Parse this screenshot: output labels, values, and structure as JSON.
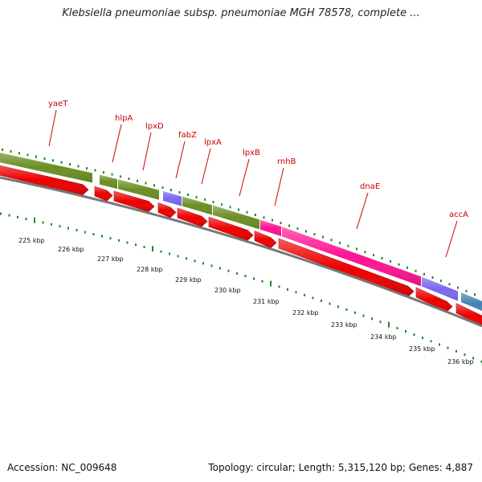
{
  "title": "Klebsiella pneumoniae subsp. pneumoniae MGH 78578, complete ...",
  "footer": {
    "accession": "Accession: NC_009648",
    "stats": "Topology: circular; Length: 5,315,120 bp; Genes: 4,887"
  },
  "colors": {
    "cds": "#ee0000",
    "backbone": "#777777",
    "tick": "#228822",
    "label": "#cc0000"
  },
  "gene_labels": [
    "yaeT",
    "hlpA",
    "lpxD",
    "fabZ",
    "lpxA",
    "lpxB",
    "rnhB",
    "dnaE",
    "accA"
  ],
  "kbp_labels": [
    "225 kbp",
    "226 kbp",
    "227 kbp",
    "228 kbp",
    "229 kbp",
    "230 kbp",
    "231 kbp",
    "232 kbp",
    "233 kbp",
    "234 kbp",
    "235 kbp",
    "236 kbp"
  ],
  "feature_track": [
    {
      "type": "gene",
      "color": "#6b8e23"
    },
    {
      "type": "gene",
      "color": "#6b8e23"
    },
    {
      "type": "gene",
      "color": "#6b8e23"
    },
    {
      "type": "misc",
      "color": "#7b68ee"
    },
    {
      "type": "gene",
      "color": "#6b8e23"
    },
    {
      "type": "gene",
      "color": "#6b8e23"
    },
    {
      "type": "gene",
      "color": "#ff1493"
    },
    {
      "type": "gene",
      "color": "#ff1493"
    },
    {
      "type": "misc",
      "color": "#7b68ee"
    },
    {
      "type": "gene",
      "color": "#4682b4"
    }
  ]
}
